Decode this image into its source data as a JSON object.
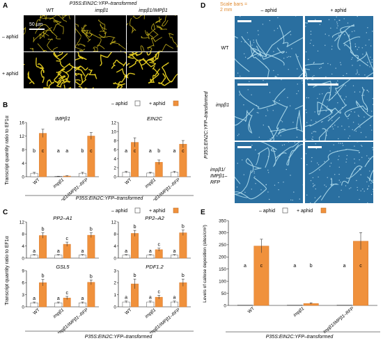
{
  "panels": {
    "A": {
      "label": "A",
      "title": "P35S:EIN2C:YFP–transformed",
      "cols": [
        "WT",
        "impβ1",
        "impβ1/IMPβ1"
      ],
      "rows": [
        "– aphid",
        "+ aphid"
      ],
      "scale": "50 µm"
    },
    "B": {
      "label": "B"
    },
    "C": {
      "label": "C"
    },
    "D": {
      "label": "D",
      "scale_note": "Scale bars = 2 mm",
      "cols": [
        "– aphid",
        "+ aphid"
      ],
      "rows": [
        "WT",
        "impβ1",
        "impβ1/ IMPβ1–RFP"
      ],
      "side_title": "P35S:EIN2C:YFP–transformed"
    },
    "E": {
      "label": "E"
    }
  },
  "legend": {
    "minus": "– aphid",
    "plus": "+ aphid"
  },
  "footer": "P35S:EIN2C:YFP–transformed",
  "colors": {
    "plus_bar": "#f0913c",
    "minus_bar": "#ffffff",
    "confocal": "#e8d020",
    "leaf": "#2a6fa0"
  },
  "chart_data": [
    {
      "panel": "B",
      "type": "bar",
      "title": "IMPβ1",
      "ylabel": "Transcript quantity ratio to EF1α",
      "categories": [
        "WT",
        "impβ1",
        "impβ1/IMPβ1–RFP"
      ],
      "ylim": [
        0,
        16
      ],
      "yticks": [
        0,
        4,
        8,
        12,
        16
      ],
      "series": [
        {
          "name": "– aphid",
          "values": [
            1.0,
            0.1,
            1.0
          ],
          "err": [
            0.3,
            0.05,
            0.3
          ],
          "letters": [
            "b",
            "a",
            "b"
          ]
        },
        {
          "name": "+ aphid",
          "values": [
            12.8,
            0.2,
            12.0
          ],
          "err": [
            1.2,
            0.1,
            1.0
          ],
          "letters": [
            "c",
            "a",
            "c"
          ]
        }
      ]
    },
    {
      "panel": "B",
      "type": "bar",
      "title": "EIN2C",
      "categories": [
        "WT",
        "impβ1",
        "impβ1/IMPβ1–RFP"
      ],
      "ylim": [
        0,
        12
      ],
      "yticks": [
        0,
        2,
        4,
        6,
        8,
        10,
        12
      ],
      "series": [
        {
          "name": "– aphid",
          "values": [
            1.0,
            0.8,
            1.0
          ],
          "err": [
            0.2,
            0.2,
            0.2
          ],
          "letters": [
            "a",
            "a",
            "a"
          ]
        },
        {
          "name": "+ aphid",
          "values": [
            7.6,
            3.2,
            7.2
          ],
          "err": [
            1.0,
            0.5,
            0.8
          ],
          "letters": [
            "c",
            "b",
            "c"
          ]
        }
      ]
    },
    {
      "panel": "C",
      "type": "bar",
      "title": "PP2–A1",
      "ylabel": "Transcript quantity ratio to EF1α",
      "categories": [
        "WT",
        "impβ1",
        "impβ1/IMPβ1–RFP"
      ],
      "ylim": [
        0,
        12
      ],
      "yticks": [
        0,
        4,
        8,
        12
      ],
      "series": [
        {
          "name": "– aphid",
          "values": [
            1.0,
            1.0,
            1.0
          ],
          "err": [
            0.2,
            0.2,
            0.2
          ],
          "letters": [
            "a",
            "a",
            "a"
          ]
        },
        {
          "name": "+ aphid",
          "values": [
            7.5,
            4.6,
            7.6
          ],
          "err": [
            0.9,
            0.7,
            0.8
          ],
          "letters": [
            "b",
            "c",
            "b"
          ]
        }
      ]
    },
    {
      "panel": "C",
      "type": "bar",
      "title": "PP2–A2",
      "categories": [
        "WT",
        "impβ1",
        "impβ1/IMPβ1–RFP"
      ],
      "ylim": [
        0,
        12
      ],
      "yticks": [
        0,
        4,
        8,
        12
      ],
      "series": [
        {
          "name": "– aphid",
          "values": [
            1.0,
            1.0,
            1.0
          ],
          "err": [
            0.2,
            0.2,
            0.2
          ],
          "letters": [
            "a",
            "a",
            "a"
          ]
        },
        {
          "name": "+ aphid",
          "values": [
            8.2,
            2.8,
            8.4
          ],
          "err": [
            1.0,
            0.5,
            0.9
          ],
          "letters": [
            "b",
            "c",
            "b"
          ]
        }
      ]
    },
    {
      "panel": "C",
      "type": "bar",
      "title": "GSL5",
      "categories": [
        "WT",
        "impβ1",
        "impβ1/IMPβ1–RFP"
      ],
      "ylim": [
        0,
        9
      ],
      "yticks": [
        0,
        3,
        6,
        9
      ],
      "series": [
        {
          "name": "– aphid",
          "values": [
            1.0,
            1.0,
            1.0
          ],
          "err": [
            0.2,
            0.2,
            0.2
          ],
          "letters": [
            "a",
            "a",
            "a"
          ]
        },
        {
          "name": "+ aphid",
          "values": [
            6.0,
            2.2,
            6.1
          ],
          "err": [
            0.8,
            0.4,
            0.6
          ],
          "letters": [
            "b",
            "c",
            "b"
          ]
        }
      ]
    },
    {
      "panel": "C",
      "type": "bar",
      "title": "PDF1.2",
      "categories": [
        "WT",
        "impβ1",
        "impβ1/IMPβ1–RFP"
      ],
      "ylim": [
        0,
        3
      ],
      "yticks": [
        0,
        1,
        2,
        3
      ],
      "series": [
        {
          "name": "– aphid",
          "values": [
            0.4,
            0.4,
            0.4
          ],
          "err": [
            0.08,
            0.08,
            0.08
          ],
          "letters": [
            "a",
            "a",
            "a"
          ]
        },
        {
          "name": "+ aphid",
          "values": [
            1.9,
            0.8,
            2.0
          ],
          "err": [
            0.4,
            0.15,
            0.3
          ],
          "letters": [
            "b",
            "c",
            "b"
          ]
        }
      ]
    },
    {
      "panel": "E",
      "type": "bar",
      "ylabel": "Levels of callose deposition (sites/cm²)",
      "categories": [
        "WT",
        "impβ1",
        "impβ1/IMPβ1–RFP"
      ],
      "ylim": [
        0,
        350
      ],
      "yticks": [
        0,
        50,
        100,
        150,
        200,
        250,
        300,
        350
      ],
      "series": [
        {
          "name": "– aphid",
          "values": [
            2,
            2,
            2
          ],
          "err": [
            0,
            0,
            0
          ],
          "letters": [
            "a",
            "a",
            "a"
          ]
        },
        {
          "name": "+ aphid",
          "values": [
            245,
            8,
            265
          ],
          "err": [
            28,
            3,
            35
          ],
          "letters": [
            "c",
            "b",
            "c"
          ]
        }
      ]
    }
  ]
}
